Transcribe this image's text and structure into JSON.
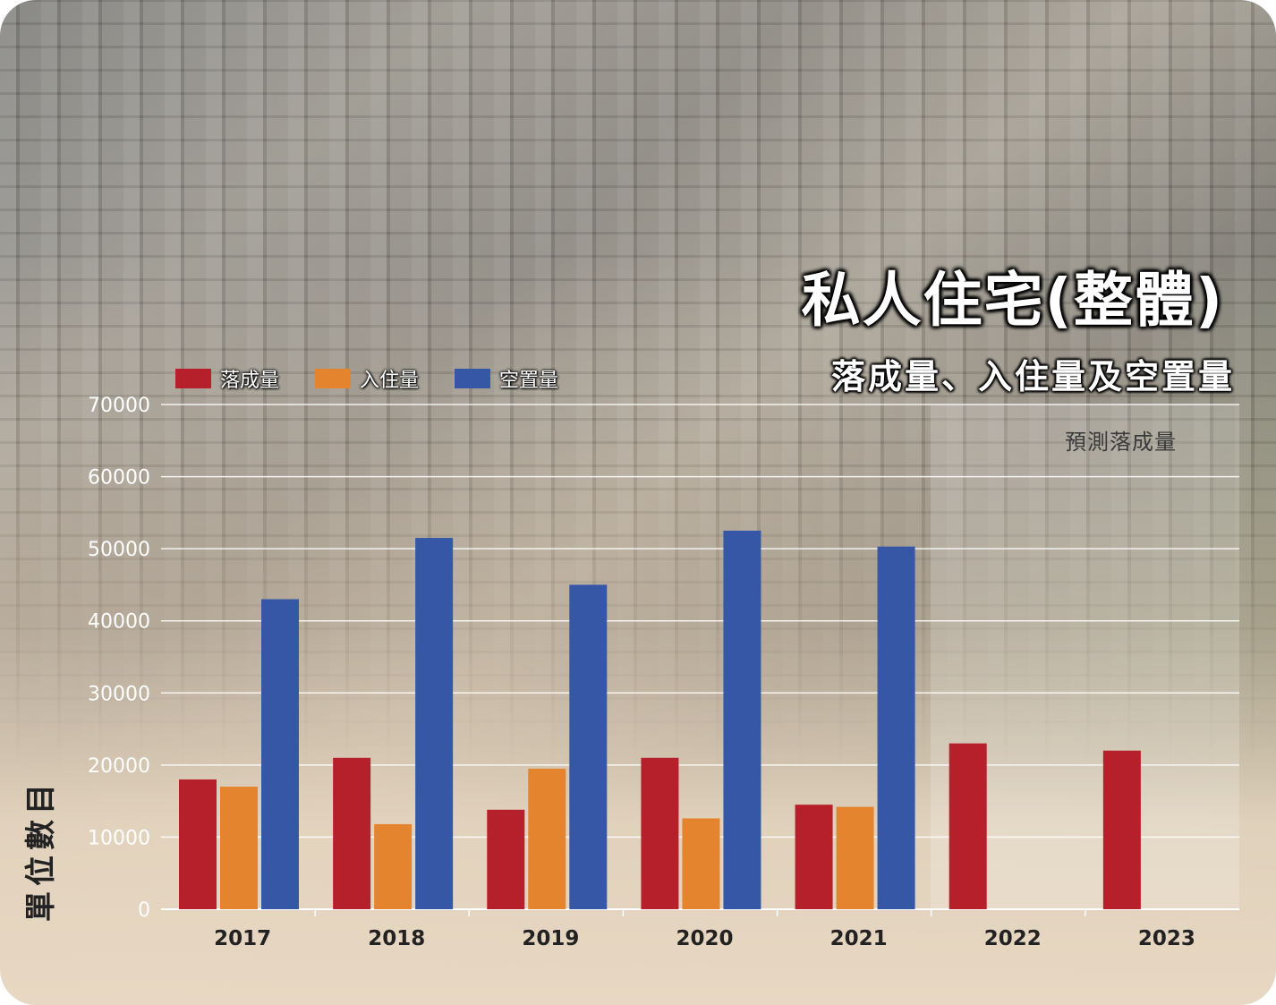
{
  "title": "私人住宅(整體)",
  "subtitle": "落成量、入住量及空置量",
  "forecast_label": "預測落成量",
  "ylabel": "單位數目",
  "legend": [
    {
      "label": "落成量",
      "color": "#b5202a"
    },
    {
      "label": "入住量",
      "color": "#e5842e"
    },
    {
      "label": "空置量",
      "color": "#3657a5"
    }
  ],
  "chart_data": {
    "type": "bar",
    "categories": [
      "2017",
      "2018",
      "2019",
      "2020",
      "2021",
      "2022",
      "2023"
    ],
    "series": [
      {
        "name": "落成量",
        "color": "#b5202a",
        "values": [
          18000,
          21000,
          13800,
          21000,
          14500,
          23000,
          22000
        ]
      },
      {
        "name": "入住量",
        "color": "#e5842e",
        "values": [
          17000,
          11800,
          19500,
          12600,
          14200,
          null,
          null
        ]
      },
      {
        "name": "空置量",
        "color": "#3657a5",
        "values": [
          43000,
          51500,
          45000,
          52500,
          50300,
          null,
          null
        ]
      }
    ],
    "ylim": [
      0,
      70000
    ],
    "yticks": [
      "0",
      "10000",
      "20000",
      "30000",
      "40000",
      "50000",
      "60000",
      "70000"
    ],
    "forecast_categories": [
      "2022",
      "2023"
    ],
    "grid": true,
    "legend_position": "top-left"
  }
}
